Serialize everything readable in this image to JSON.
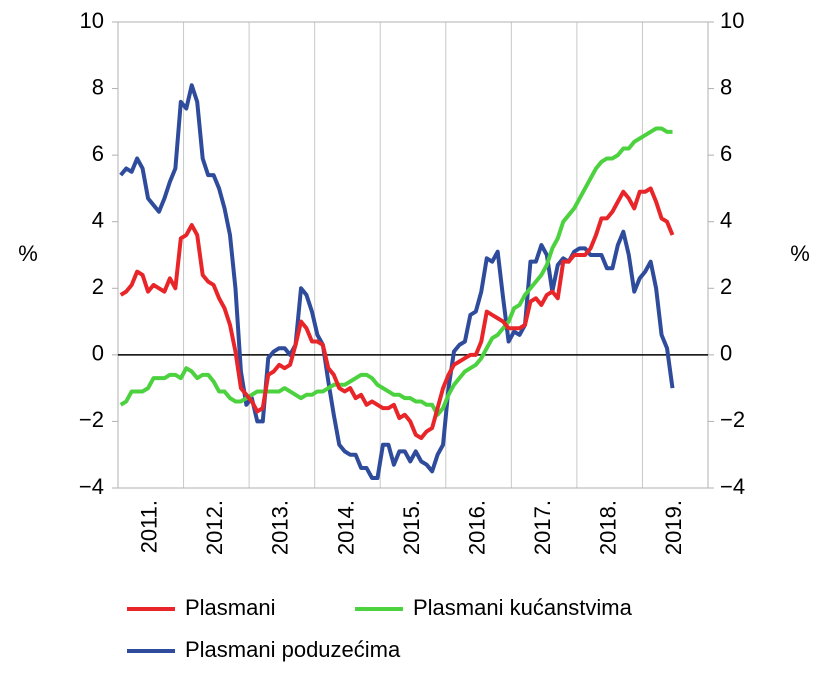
{
  "chart_data": {
    "type": "line",
    "categories": [
      null,
      null,
      null,
      null,
      null,
      null,
      "2011.",
      null,
      null,
      null,
      null,
      null,
      null,
      null,
      null,
      null,
      null,
      null,
      "2012.",
      null,
      null,
      null,
      null,
      null,
      null,
      null,
      null,
      null,
      null,
      null,
      "2013.",
      null,
      null,
      null,
      null,
      null,
      null,
      null,
      null,
      null,
      null,
      null,
      "2014.",
      null,
      null,
      null,
      null,
      null,
      null,
      null,
      null,
      null,
      null,
      null,
      "2015.",
      null,
      null,
      null,
      null,
      null,
      null,
      null,
      null,
      null,
      null,
      null,
      "2016.",
      null,
      null,
      null,
      null,
      null,
      null,
      null,
      null,
      null,
      null,
      null,
      "2017.",
      null,
      null,
      null,
      null,
      null,
      null,
      null,
      null,
      null,
      null,
      null,
      "2018.",
      null,
      null,
      null,
      null,
      null,
      null,
      null,
      null,
      null,
      null,
      null,
      "2019.",
      null,
      null,
      null,
      null,
      null
    ],
    "series": [
      {
        "name": "Plasmani",
        "color": "#e8262a",
        "values": [
          1.8,
          1.9,
          2.1,
          2.5,
          2.4,
          1.9,
          2.1,
          2.0,
          1.9,
          2.3,
          2.0,
          3.5,
          3.6,
          3.9,
          3.6,
          2.4,
          2.2,
          2.1,
          1.7,
          1.4,
          0.9,
          0.1,
          -1.0,
          -1.2,
          -1.4,
          -1.7,
          -1.6,
          -0.6,
          -0.5,
          -0.3,
          -0.4,
          -0.3,
          0.3,
          1.0,
          0.8,
          0.4,
          0.4,
          0.3,
          -0.4,
          -0.6,
          -1.0,
          -1.1,
          -1.0,
          -1.3,
          -1.2,
          -1.5,
          -1.4,
          -1.5,
          -1.6,
          -1.6,
          -1.5,
          -1.9,
          -1.8,
          -2.0,
          -2.4,
          -2.5,
          -2.3,
          -2.2,
          -1.6,
          -1.0,
          -0.6,
          -0.3,
          -0.2,
          -0.1,
          0.0,
          0.0,
          0.4,
          1.3,
          1.2,
          1.1,
          1.0,
          0.8,
          0.8,
          0.8,
          0.9,
          1.6,
          1.7,
          1.5,
          1.8,
          1.9,
          1.7,
          2.8,
          2.8,
          3.0,
          3.0,
          3.0,
          3.2,
          3.6,
          4.1,
          4.1,
          4.3,
          4.6,
          4.9,
          4.7,
          4.4,
          4.9,
          4.9,
          5.0,
          4.6,
          4.1,
          4.0,
          3.6,
          null,
          null,
          null,
          null,
          null,
          null
        ]
      },
      {
        "name": "Plasmani kućanstvima",
        "color": "#4cd13f",
        "values": [
          -1.5,
          -1.4,
          -1.1,
          -1.1,
          -1.1,
          -1.0,
          -0.7,
          -0.7,
          -0.7,
          -0.6,
          -0.6,
          -0.7,
          -0.4,
          -0.5,
          -0.7,
          -0.6,
          -0.6,
          -0.8,
          -1.1,
          -1.1,
          -1.3,
          -1.4,
          -1.4,
          -1.3,
          -1.2,
          -1.1,
          -1.1,
          -1.1,
          -1.1,
          -1.1,
          -1.0,
          -1.1,
          -1.2,
          -1.3,
          -1.2,
          -1.2,
          -1.1,
          -1.1,
          -1.0,
          -0.9,
          -0.9,
          -0.9,
          -0.8,
          -0.7,
          -0.6,
          -0.6,
          -0.7,
          -0.9,
          -1.0,
          -1.1,
          -1.2,
          -1.2,
          -1.3,
          -1.3,
          -1.4,
          -1.4,
          -1.5,
          -1.5,
          -1.8,
          -1.6,
          -1.2,
          -0.9,
          -0.7,
          -0.5,
          -0.4,
          -0.3,
          -0.1,
          0.2,
          0.5,
          0.6,
          0.8,
          1.0,
          1.4,
          1.5,
          1.8,
          2.0,
          2.2,
          2.4,
          2.7,
          3.2,
          3.5,
          4.0,
          4.2,
          4.4,
          4.7,
          5.0,
          5.3,
          5.6,
          5.8,
          5.9,
          5.9,
          6.0,
          6.2,
          6.2,
          6.4,
          6.5,
          6.6,
          6.7,
          6.8,
          6.8,
          6.7,
          6.7,
          null,
          null,
          null,
          null,
          null,
          null
        ]
      },
      {
        "name": "Plasmani poduzećima",
        "color": "#2f4b9b",
        "values": [
          5.4,
          5.6,
          5.5,
          5.9,
          5.6,
          4.7,
          4.5,
          4.3,
          4.7,
          5.2,
          5.6,
          7.6,
          7.4,
          8.1,
          7.6,
          5.9,
          5.4,
          5.4,
          5.0,
          4.4,
          3.6,
          2.0,
          -0.5,
          -1.5,
          -1.3,
          -2.0,
          -2.0,
          -0.1,
          0.1,
          0.2,
          0.2,
          0.0,
          0.3,
          2.0,
          1.8,
          1.3,
          0.6,
          0.3,
          -0.8,
          -1.8,
          -2.7,
          -2.9,
          -3.0,
          -3.0,
          -3.4,
          -3.4,
          -3.7,
          -3.7,
          -2.7,
          -2.7,
          -3.3,
          -2.9,
          -2.9,
          -3.2,
          -2.9,
          -3.2,
          -3.3,
          -3.5,
          -3.0,
          -2.7,
          -1.0,
          0.1,
          0.3,
          0.4,
          1.2,
          1.3,
          1.9,
          2.9,
          2.8,
          3.1,
          1.7,
          0.4,
          0.7,
          0.6,
          0.9,
          2.8,
          2.8,
          3.3,
          3.0,
          1.9,
          2.7,
          2.9,
          2.8,
          3.1,
          3.2,
          3.2,
          3.0,
          3.0,
          3.0,
          2.6,
          2.6,
          3.3,
          3.7,
          3.0,
          1.9,
          2.3,
          2.5,
          2.8,
          2.0,
          0.6,
          0.2,
          -1.0,
          null,
          null,
          null,
          null,
          null,
          null
        ]
      }
    ],
    "ylabel": "%",
    "y2label": "%",
    "ylim": [
      -4,
      10
    ],
    "yticks": [
      {
        "value": -4,
        "label": "−4"
      },
      {
        "value": -2,
        "label": "−2"
      },
      0,
      2,
      4,
      6,
      8,
      10
    ],
    "y2lim": [
      -4,
      10
    ],
    "y2ticks": [
      {
        "value": -4,
        "label": "−4"
      },
      {
        "value": -2,
        "label": "−2"
      },
      0,
      2,
      4,
      6,
      8,
      10
    ]
  }
}
